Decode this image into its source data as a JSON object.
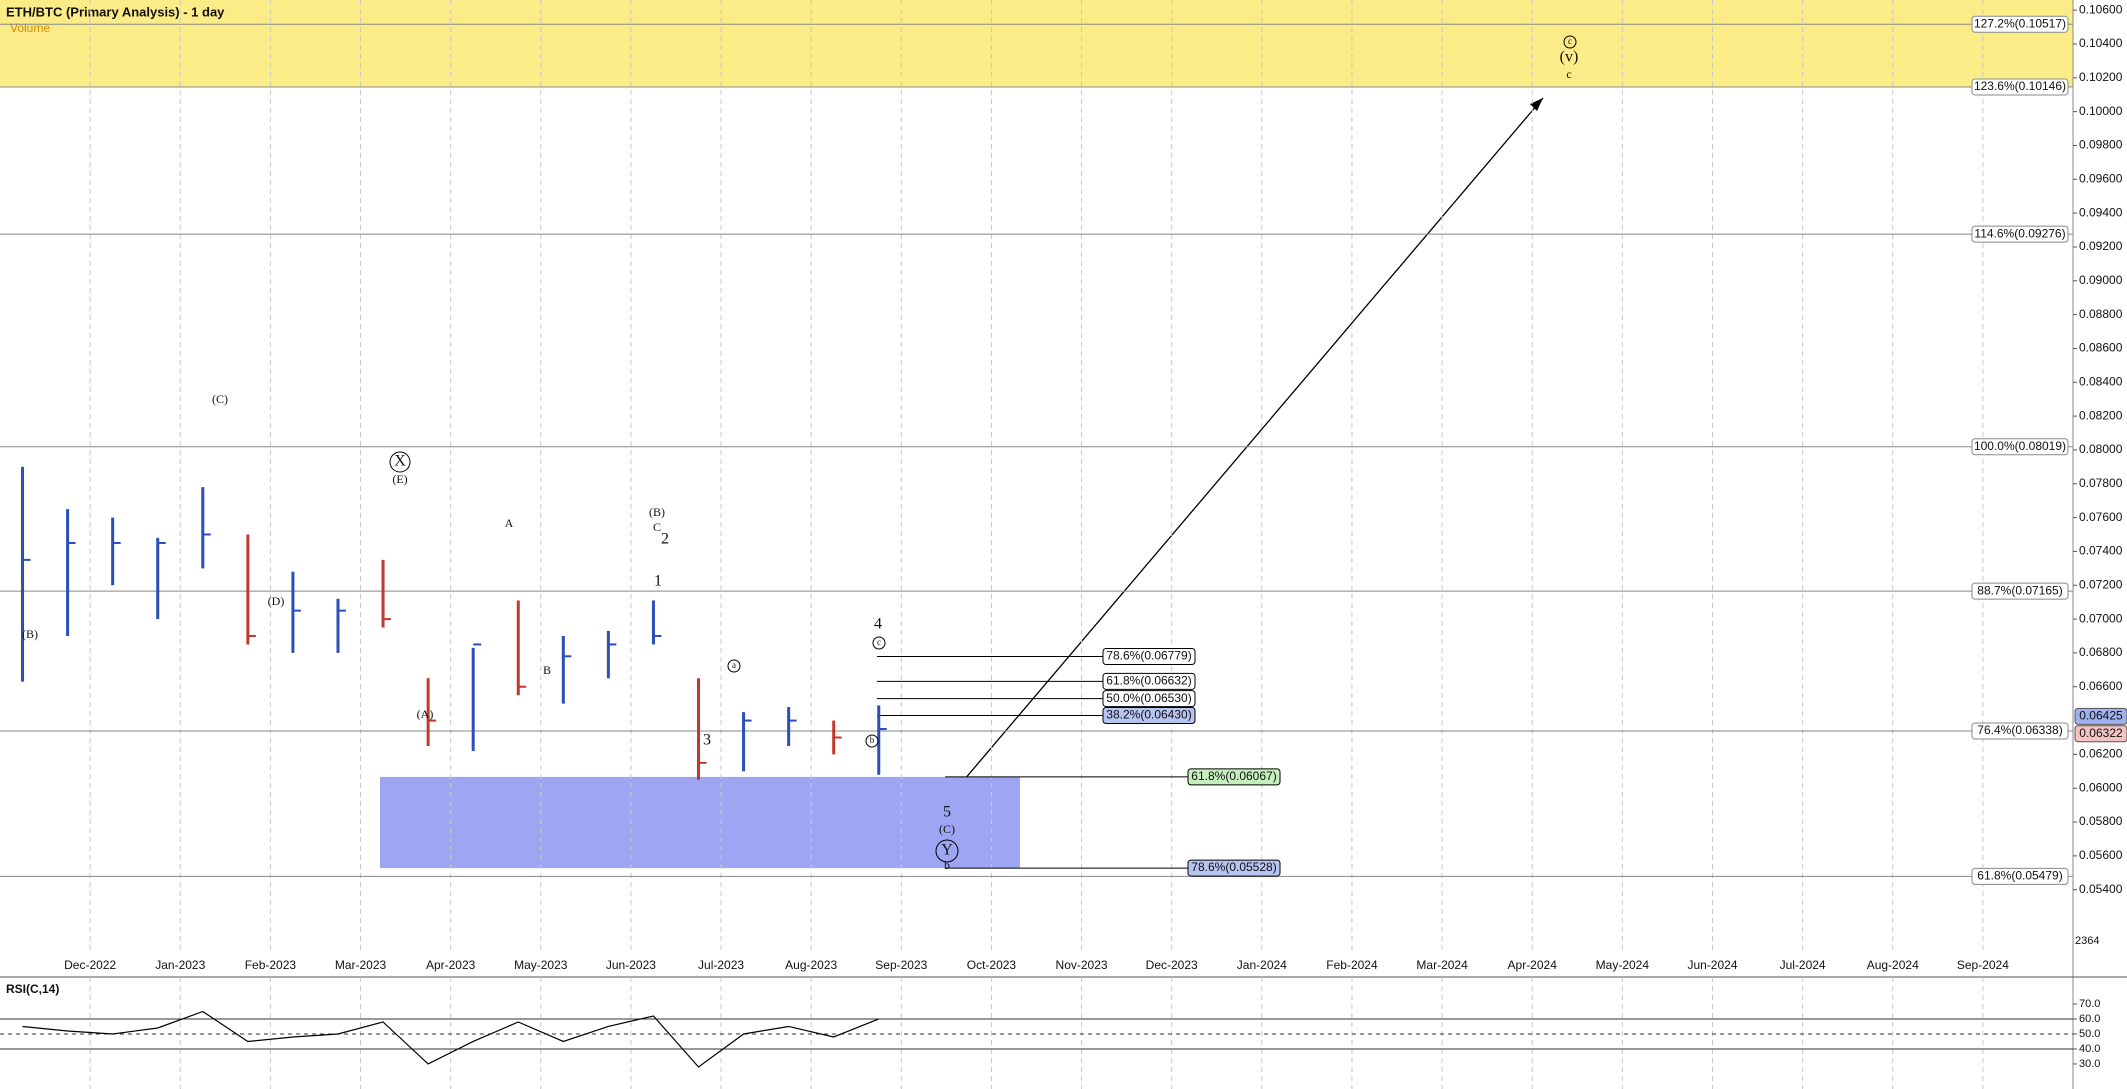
{
  "chart_data": {
    "type": "ohlc",
    "title": "ETH/BTC (Primary Analysis) - 1 day",
    "volume_label": "Volume",
    "volume_last": "2364",
    "categories": [
      null,
      null,
      "Dec-2022",
      null,
      "Jan-2023",
      null,
      "Feb-2023",
      null,
      "Mar-2023",
      null,
      "Apr-2023",
      null,
      "May-2023",
      null,
      "Jun-2023",
      null,
      "Jul-2023",
      null,
      "Aug-2023",
      null,
      "Sep-2023",
      null,
      "Oct-2023",
      null,
      "Nov-2023",
      null,
      "Dec-2023",
      null,
      "Jan-2024",
      null,
      "Feb-2024",
      null,
      "Mar-2024",
      null,
      "Apr-2024",
      null,
      "May-2024",
      null,
      "Jun-2024",
      null,
      "Jul-2024",
      null,
      "Aug-2024",
      null,
      "Sep-2024",
      null
    ],
    "series": [
      {
        "name": "High",
        "color": "#2a4fb8",
        "values": [
          0.079,
          0.0765,
          0.076,
          0.0748,
          0.0778,
          0.075,
          0.0728,
          0.0712,
          0.0735,
          0.0665,
          0.0683,
          0.0711,
          0.069,
          0.0693,
          0.0711,
          0.0665,
          0.0645,
          0.0648,
          0.064,
          0.0649,
          null,
          null,
          null,
          null,
          null,
          null,
          null,
          null,
          null,
          null,
          null,
          null,
          null,
          null,
          null,
          null,
          null,
          null,
          null,
          null,
          null,
          null,
          null,
          null,
          null,
          null
        ]
      },
      {
        "name": "Low",
        "color": "#c0392b",
        "values": [
          0.0663,
          0.069,
          0.072,
          0.07,
          0.073,
          0.0685,
          0.068,
          0.068,
          0.0695,
          0.0625,
          0.0622,
          0.0655,
          0.065,
          0.0665,
          0.0685,
          0.0605,
          0.061,
          0.0625,
          0.062,
          0.0608,
          null,
          null,
          null,
          null,
          null,
          null,
          null,
          null,
          null,
          null,
          null,
          null,
          null,
          null,
          null,
          null,
          null,
          null,
          null,
          null,
          null,
          null,
          null,
          null,
          null,
          null
        ]
      },
      {
        "name": "Close",
        "color": "#333333",
        "values": [
          0.0735,
          0.0745,
          0.0745,
          0.0745,
          0.075,
          0.069,
          0.0705,
          0.0705,
          0.07,
          0.064,
          0.0685,
          0.066,
          0.0678,
          0.0685,
          0.069,
          0.0615,
          0.064,
          0.064,
          0.063,
          0.0635,
          null,
          null,
          null,
          null,
          null,
          null,
          null,
          null,
          null,
          null,
          null,
          null,
          null,
          null,
          null,
          null,
          null,
          null,
          null,
          null,
          null,
          null,
          null,
          null,
          null,
          null
        ]
      }
    ],
    "ylim": [
      0.0502,
      0.1066
    ],
    "yticks": [
      {
        "value": 0.054,
        "label": "0.05400"
      },
      {
        "value": 0.056,
        "label": "0.05600"
      },
      {
        "value": 0.058,
        "label": "0.05800"
      },
      {
        "value": 0.06,
        "label": "0.06000"
      },
      {
        "value": 0.062,
        "label": "0.06200"
      },
      {
        "value": 0.066,
        "label": "0.06600"
      },
      {
        "value": 0.068,
        "label": "0.06800"
      },
      {
        "value": 0.07,
        "label": "0.07000"
      },
      {
        "value": 0.072,
        "label": "0.07200"
      },
      {
        "value": 0.074,
        "label": "0.07400"
      },
      {
        "value": 0.076,
        "label": "0.07600"
      },
      {
        "value": 0.078,
        "label": "0.07800"
      },
      {
        "value": 0.08,
        "label": "0.08000"
      },
      {
        "value": 0.082,
        "label": "0.08200"
      },
      {
        "value": 0.084,
        "label": "0.08400"
      },
      {
        "value": 0.086,
        "label": "0.08600"
      },
      {
        "value": 0.088,
        "label": "0.08800"
      },
      {
        "value": 0.09,
        "label": "0.09000"
      },
      {
        "value": 0.092,
        "label": "0.09200"
      },
      {
        "value": 0.094,
        "label": "0.09400"
      },
      {
        "value": 0.096,
        "label": "0.09600"
      },
      {
        "value": 0.098,
        "label": "0.09800"
      },
      {
        "value": 0.1,
        "label": "0.10000"
      },
      {
        "value": 0.102,
        "label": "0.10200"
      },
      {
        "value": 0.104,
        "label": "0.10400"
      },
      {
        "value": 0.106,
        "label": "0.10600"
      }
    ],
    "price_markers": [
      {
        "value": 0.06425,
        "label": "0.06425",
        "color": "#9fb0ee"
      },
      {
        "value": 0.06322,
        "label": "0.06322",
        "color": "#f4c4c4"
      }
    ],
    "fib_levels": [
      {
        "value": 0.10517,
        "label": "127.2%(0.10517)"
      },
      {
        "value": 0.10146,
        "label": "123.6%(0.10146)"
      },
      {
        "value": 0.09276,
        "label": "114.6%(0.09276)"
      },
      {
        "value": 0.08019,
        "label": "100.0%(0.08019)"
      },
      {
        "value": 0.07165,
        "label": "88.7%(0.07165)"
      },
      {
        "value": 0.06338,
        "label": "76.4%(0.06338)"
      },
      {
        "value": 0.05479,
        "label": "61.8%(0.05479)"
      }
    ],
    "short_fibs": [
      {
        "value": 0.06779,
        "label": "78.6%(0.06779)",
        "color": "#ffffff"
      },
      {
        "value": 0.06632,
        "label": "61.8%(0.06632)",
        "color": "#ffffff"
      },
      {
        "value": 0.0653,
        "label": "50.0%(0.06530)",
        "color": "#ffffff"
      },
      {
        "value": 0.0643,
        "label": "38.2%(0.06430)",
        "color": "#b8c4f0"
      },
      {
        "value": 0.06067,
        "label": "61.8%(0.06067)",
        "color": "#c6efbe"
      },
      {
        "value": 0.05528,
        "label": "78.6%(0.05528)",
        "color": "#b8c4f0"
      }
    ],
    "wave_labels": [
      "(B)",
      "(C)",
      "(D)",
      "(E)",
      "X",
      "(A)",
      "A",
      "B",
      "(B)",
      "C",
      "2",
      "1",
      "3",
      "a",
      "b",
      "c",
      "4",
      "5",
      "(C)",
      "Y",
      "b",
      "c",
      "(v)",
      "c"
    ],
    "rsi_title": "RSI(C,14)",
    "rsi": [
      55,
      52,
      50,
      54,
      65,
      45,
      48,
      50,
      58,
      30,
      45,
      58,
      45,
      55,
      62,
      28,
      50,
      55,
      48,
      60,
      null,
      null,
      null,
      null,
      null,
      null,
      null,
      null,
      null,
      null,
      null,
      null,
      null,
      null,
      null,
      null,
      null,
      null,
      null,
      null,
      null,
      null,
      null,
      null,
      null,
      null
    ],
    "rsi_lim": [
      13.3,
      88
    ],
    "rsi_ticks": [
      {
        "value": 30,
        "label": "30.0"
      },
      {
        "value": 40,
        "label": "40.0"
      },
      {
        "value": 50,
        "label": "50.0"
      },
      {
        "value": 60,
        "label": "60.0"
      },
      {
        "value": 70,
        "label": "70.0"
      }
    ],
    "rsi_lines": [
      40,
      50,
      60
    ]
  }
}
